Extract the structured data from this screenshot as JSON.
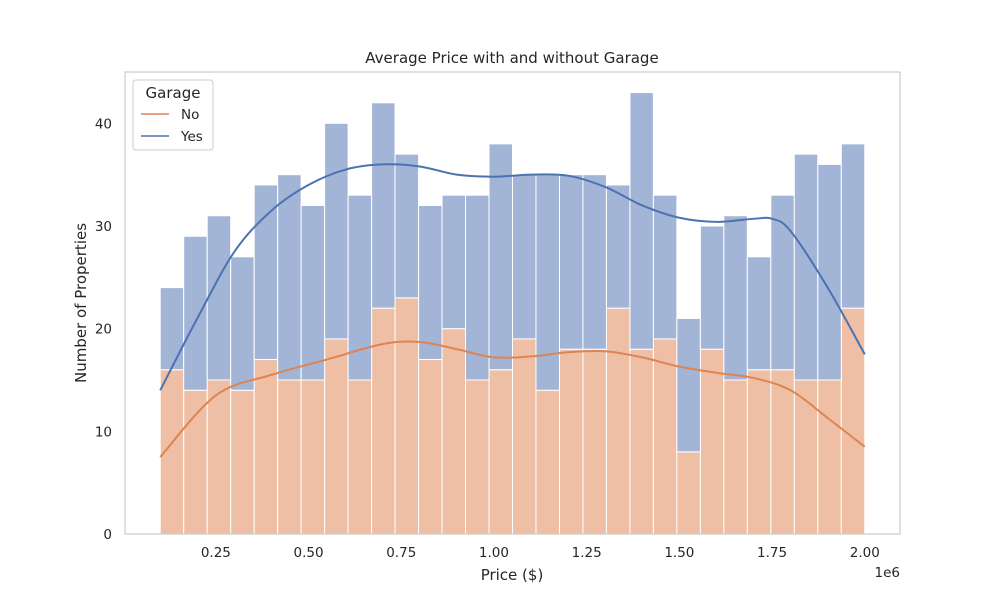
{
  "chart_data": {
    "type": "histogram",
    "title": "Average Price with and without Garage",
    "xlabel": "Price ($)",
    "ylabel": "Number of Properties",
    "x_offset_text": "1e6",
    "x_ticks": [
      0.25,
      0.5,
      0.75,
      1.0,
      1.25,
      1.5,
      1.75,
      2.0
    ],
    "x_tick_labels": [
      "0.25",
      "0.50",
      "0.75",
      "1.00",
      "1.25",
      "1.50",
      "1.75",
      "2.00"
    ],
    "y_ticks": [
      0,
      10,
      20,
      30,
      40
    ],
    "y_tick_labels": [
      "0",
      "10",
      "20",
      "30",
      "40"
    ],
    "xlim": [
      0.005,
      2.095
    ],
    "ylim": [
      0,
      45
    ],
    "grid": false,
    "stacked": true,
    "kde": true,
    "legend": {
      "title": "Garage",
      "position": "top-left",
      "entries": [
        "No",
        "Yes"
      ]
    },
    "bin_edges": [
      0.1,
      0.1633,
      0.2267,
      0.29,
      0.3533,
      0.4167,
      0.48,
      0.5433,
      0.6067,
      0.67,
      0.7333,
      0.7967,
      0.86,
      0.9233,
      0.9867,
      1.05,
      1.1133,
      1.1767,
      1.24,
      1.3033,
      1.3667,
      1.43,
      1.4933,
      1.5567,
      1.62,
      1.6833,
      1.7467,
      1.81,
      1.8733,
      1.9367,
      2.0
    ],
    "series": [
      {
        "name": "No",
        "counts": [
          16,
          14,
          15,
          14,
          17,
          15,
          15,
          19,
          15,
          22,
          23,
          17,
          20,
          15,
          16,
          19,
          14,
          18,
          18,
          22,
          18,
          19,
          8,
          18,
          15,
          16,
          16,
          15,
          15,
          22
        ],
        "kde_x": [
          0.1,
          0.25,
          0.4,
          0.55,
          0.7,
          0.8,
          0.9,
          1.0,
          1.1,
          1.2,
          1.3,
          1.4,
          1.5,
          1.6,
          1.7,
          1.8,
          1.9,
          2.0
        ],
        "kde_y": [
          7.5,
          13.5,
          15.5,
          17.0,
          18.5,
          18.7,
          18.0,
          17.2,
          17.3,
          17.7,
          17.8,
          17.2,
          16.3,
          15.7,
          15.2,
          14.0,
          11.3,
          8.5
        ]
      },
      {
        "name": "Yes",
        "counts": [
          8,
          15,
          16,
          13,
          17,
          20,
          17,
          21,
          18,
          20,
          14,
          15,
          13,
          18,
          22,
          16,
          21,
          17,
          17,
          12,
          25,
          14,
          13,
          12,
          16,
          11,
          17,
          22,
          21,
          16
        ],
        "kde_x": [
          0.1,
          0.2,
          0.3,
          0.4,
          0.5,
          0.6,
          0.7,
          0.8,
          0.9,
          1.0,
          1.1,
          1.2,
          1.3,
          1.4,
          1.5,
          1.6,
          1.7,
          1.75,
          1.8,
          1.9,
          2.0
        ],
        "kde_y": [
          14.0,
          21.0,
          27.5,
          31.5,
          34.0,
          35.5,
          36.0,
          35.8,
          35.0,
          34.8,
          35.0,
          34.9,
          33.8,
          32.0,
          30.8,
          30.4,
          30.7,
          30.7,
          29.5,
          24.0,
          17.5
        ]
      }
    ]
  },
  "colors": {
    "no_bar": "#EEBFA4",
    "yes_bar": "#A3B5D6",
    "no_line": "#DD8452",
    "yes_line": "#4C72B0",
    "axes_edge": "#CCCCCC",
    "text": "#262626"
  }
}
